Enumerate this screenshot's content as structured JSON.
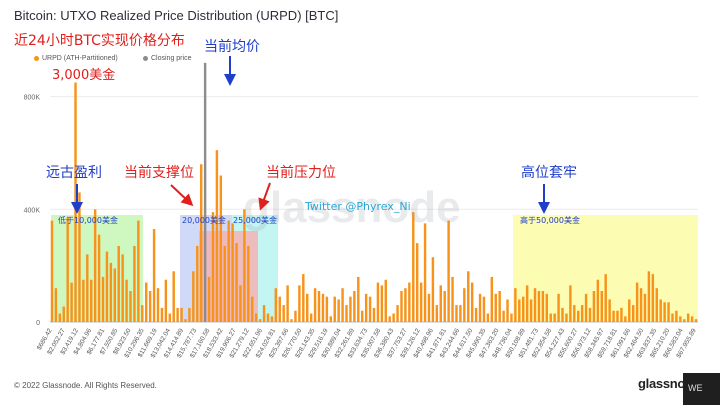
{
  "title": "Bitcoin: UTXO Realized Price Distribution (URPD) [BTC]",
  "legend": [
    {
      "label": "URPD (ATH-Partitioned)",
      "color": "#f7931a"
    },
    {
      "label": "Closing price",
      "color": "#8c8c8c"
    }
  ],
  "annotations": {
    "subtitle_cn": "近24小时BTC实现价格分布",
    "amount_3000": "3,000美金",
    "current_avg": "当前均价",
    "ancient_profit": "远古盈利",
    "support": "当前支撑位",
    "resistance": "当前压力位",
    "high_trapped": "高位套牢",
    "below_10000": "低于10,000美金",
    "range_20000": "20,000美金",
    "range_25000": "25,000美金",
    "above_50000": "高于50,000美金",
    "twitter": "Twitter @Phyrex_Ni"
  },
  "footer": "© 2022 Glassnode. All Rights Reserved.",
  "brand": "glassnode",
  "watermark": "glassnode",
  "corner_badge": "WE",
  "colors": {
    "bar": "#f7931a",
    "closing": "#8c8c8c",
    "green_band": "#c6f7b5",
    "blue_band": "#c8d2f7",
    "red_band": "#f4b2b2",
    "cyan_band": "#b9f3f1",
    "yellow_band": "#fbfba4",
    "annotation_red": "#e0201c",
    "annotation_blue": "#1f3ec9"
  },
  "chart_data": {
    "type": "bar",
    "y_axis": {
      "ticks": [
        "0",
        "400K",
        "800K"
      ],
      "tick_values": [
        0,
        400000,
        800000
      ],
      "ylim": [
        0,
        930000
      ]
    },
    "x_tick_labels": [
      "$686.42",
      "$2,052.27",
      "$3,419.12",
      "$4,804.96",
      "$6,177.81",
      "$7,550.85",
      "$8,923.50",
      "$10,296.35",
      "$11,669.19",
      "$13,042.04",
      "$14,414.89",
      "$15,787.73",
      "$17,160.58",
      "$18,533.42",
      "$19,906.27",
      "$21,279.12",
      "$22,651.96",
      "$24,024.81",
      "$25,397.66",
      "$26,770.50",
      "$28,143.35",
      "$29,516.19",
      "$30,889.04",
      "$32,261.89",
      "$33,634.73",
      "$35,007.58",
      "$36,380.43",
      "$37,753.27",
      "$39,126.12",
      "$40,498.96",
      "$41,871.81",
      "$43,244.66",
      "$44,617.50",
      "$45,990.35",
      "$47,363.20",
      "$48,736.04",
      "$50,108.89",
      "$51,481.73",
      "$52,854.58",
      "$54,227.43",
      "$55,600.27",
      "$56,973.12",
      "$58,345.97",
      "$59,718.81",
      "$61,091.66",
      "$62,464.50",
      "$63,837.35",
      "$65,210.20",
      "$66,583.04",
      "$67,955.89"
    ],
    "values": [
      360000,
      120000,
      30000,
      55000,
      370000,
      140000,
      850000,
      460000,
      150000,
      240000,
      150000,
      400000,
      310000,
      160000,
      250000,
      210000,
      190000,
      270000,
      240000,
      150000,
      110000,
      270000,
      360000,
      60000,
      140000,
      110000,
      330000,
      120000,
      50000,
      150000,
      30000,
      180000,
      50000,
      50000,
      10000,
      50000,
      180000,
      270000,
      560000,
      920000,
      160000,
      390000,
      610000,
      520000,
      270000,
      360000,
      350000,
      280000,
      130000,
      400000,
      270000,
      90000,
      30000,
      10000,
      60000,
      30000,
      20000,
      120000,
      90000,
      60000,
      130000,
      10000,
      40000,
      130000,
      170000,
      100000,
      30000,
      120000,
      110000,
      100000,
      90000,
      20000,
      90000,
      80000,
      120000,
      60000,
      90000,
      110000,
      160000,
      40000,
      100000,
      90000,
      50000,
      140000,
      130000,
      150000,
      20000,
      30000,
      60000,
      110000,
      120000,
      140000,
      390000,
      280000,
      140000,
      350000,
      100000,
      230000,
      60000,
      130000,
      110000,
      360000,
      160000,
      60000,
      60000,
      120000,
      180000,
      140000,
      50000,
      100000,
      90000,
      30000,
      160000,
      100000,
      110000,
      40000,
      80000,
      30000,
      120000,
      80000,
      90000,
      130000,
      80000,
      120000,
      110000,
      110000,
      100000,
      30000,
      30000,
      100000,
      50000,
      30000,
      130000,
      60000,
      40000,
      60000,
      100000,
      50000,
      110000,
      150000,
      110000,
      170000,
      80000,
      40000,
      40000,
      50000,
      20000,
      80000,
      60000,
      140000,
      120000,
      100000,
      180000,
      170000,
      120000,
      80000,
      70000,
      70000,
      30000,
      40000,
      20000,
      10000,
      30000,
      20000,
      10000
    ],
    "closing_price_bar_index": 39,
    "closing_price_value": 920000
  }
}
